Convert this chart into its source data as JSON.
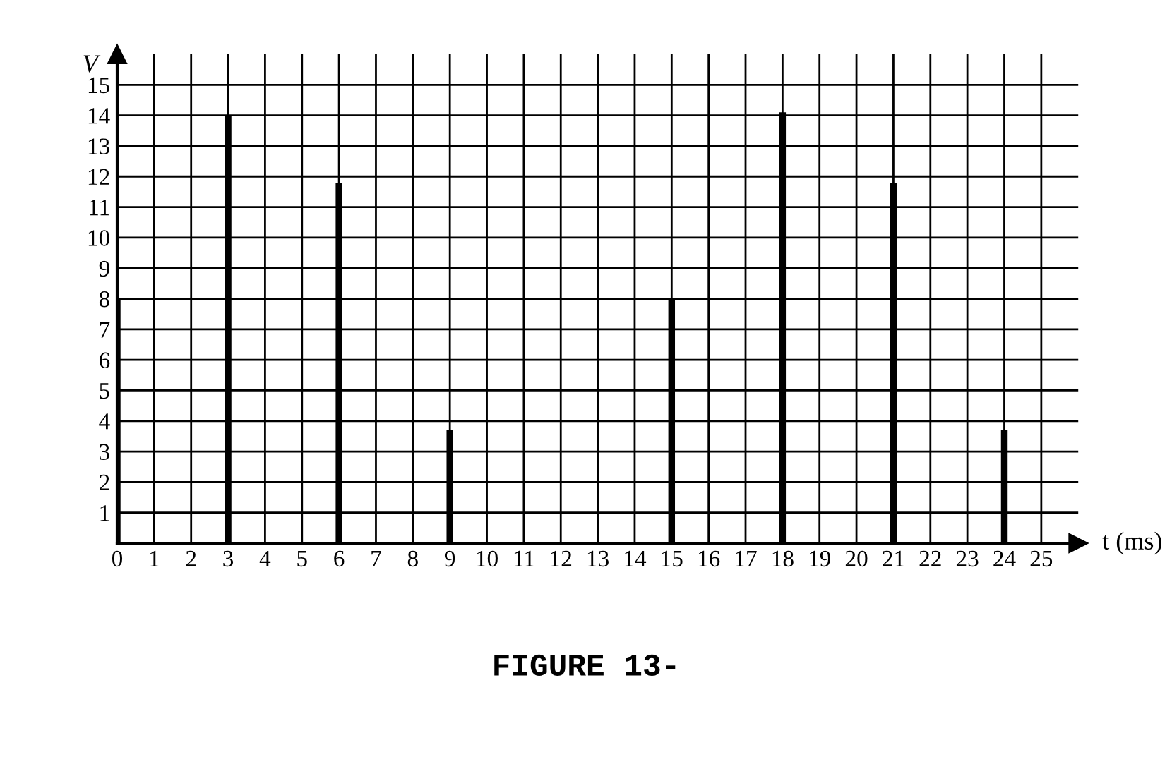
{
  "chart_data": {
    "type": "bar",
    "xlabel": "t (ms)",
    "ylabel": "V",
    "x": [
      0,
      3,
      6,
      9,
      15,
      18,
      21,
      24
    ],
    "values": [
      8,
      14,
      11.8,
      3.7,
      8,
      14.1,
      11.8,
      3.7
    ],
    "color": "#000000",
    "xlim": [
      0,
      26
    ],
    "ylim": [
      0,
      16
    ],
    "xticks": [
      0,
      1,
      2,
      3,
      4,
      5,
      6,
      7,
      8,
      9,
      10,
      11,
      12,
      13,
      14,
      15,
      16,
      17,
      18,
      19,
      20,
      21,
      22,
      23,
      24,
      25
    ],
    "yticks": [
      1,
      2,
      3,
      4,
      5,
      6,
      7,
      8,
      9,
      10,
      11,
      12,
      13,
      14,
      15
    ],
    "grid": true,
    "annotations": [
      "FIGURE 13-"
    ]
  }
}
